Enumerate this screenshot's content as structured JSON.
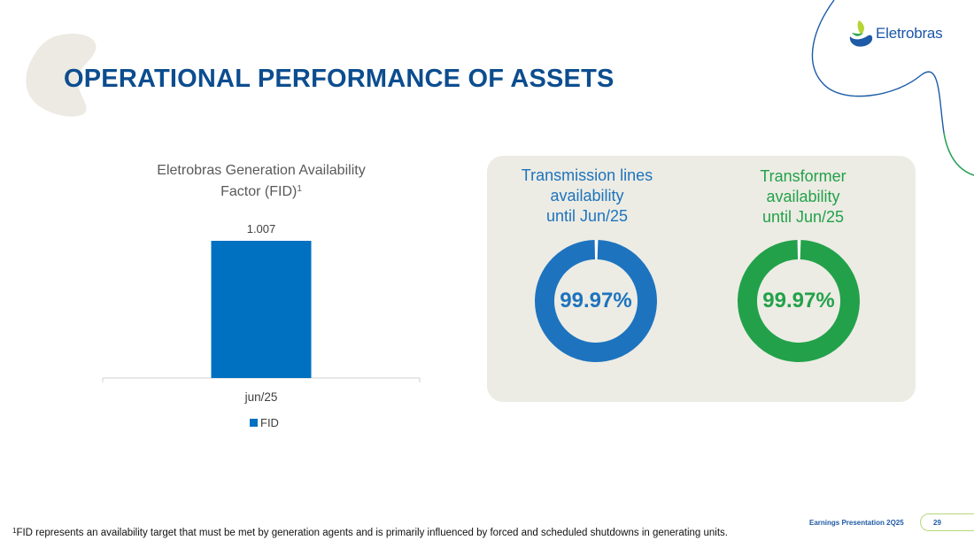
{
  "brand": {
    "name": "Eletrobras",
    "primary_color": "#0c4d8f",
    "blue": "#1e73be",
    "green": "#23a14a"
  },
  "page_title": "OPERATIONAL PERFORMANCE OF ASSETS",
  "chart_data": {
    "type": "bar",
    "title": "Eletrobras Generation Availability Factor (FID)",
    "title_line1": "Eletrobras Generation Availability",
    "title_line2": "Factor (FID)",
    "title_sup": "1",
    "categories": [
      "jun/25"
    ],
    "series": [
      {
        "name": "FID",
        "values": [
          1.007
        ],
        "color": "#0070c0"
      }
    ],
    "data_labels": [
      "1.007"
    ],
    "legend": "bottom",
    "ylim": [
      0,
      1.007
    ]
  },
  "availability": {
    "transmission": {
      "title_lines": [
        "Transmission lines",
        "availability",
        "until Jun/25"
      ],
      "value": 99.97,
      "value_label": "99.97%"
    },
    "transformer": {
      "title_lines": [
        "Transformer",
        "availability",
        "until Jun/25"
      ],
      "value": 99.97,
      "value_label": "99.97%"
    }
  },
  "footnote": {
    "sup": "1",
    "text": "FID represents an availability target that must be met by generation agents and is primarily influenced by forced and scheduled shutdowns in generating units."
  },
  "footer": {
    "label": "Earnings Presentation 2Q25",
    "page_number": "29"
  }
}
